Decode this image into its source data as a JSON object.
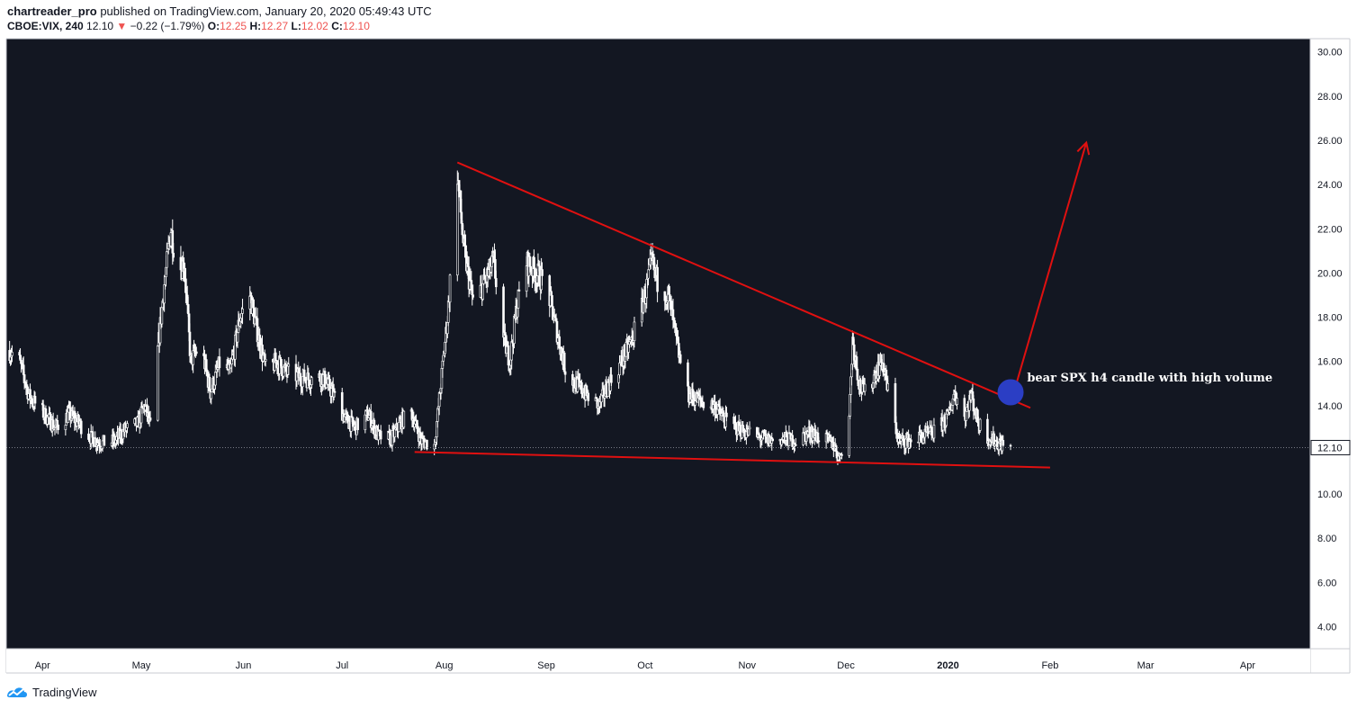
{
  "header": {
    "author": "chartreader_pro",
    "published_text": " published on TradingView.com, January 20, 2020 05:49:43 UTC",
    "symbol": "CBOE:VIX, 240",
    "last": "12.10",
    "change": "−0.22 (−1.79%)",
    "o_label": "O:",
    "o_value": "12.25",
    "h_label": "H:",
    "h_value": "12.27",
    "l_label": "L:",
    "l_value": "12.02",
    "c_label": "C:",
    "c_value": "12.10"
  },
  "footer": {
    "brand": "TradingView"
  },
  "colors": {
    "background": "#131722",
    "candle": "#ffffff",
    "trendline": "#e01010",
    "marker": "#2b3ec4",
    "axis_text": "#131722"
  },
  "chart_data": {
    "type": "candlestick",
    "symbol": "CBOE:VIX",
    "timeframe": "240",
    "title": "",
    "xlabel": "",
    "ylabel": "",
    "ylim": [
      3,
      30.6
    ],
    "y_ticks": [
      "30.00",
      "28.00",
      "26.00",
      "24.00",
      "22.00",
      "20.00",
      "18.00",
      "16.00",
      "14.00",
      "12.00",
      "10.00",
      "8.00",
      "6.00",
      "4.00"
    ],
    "last_price": 12.1,
    "last_price_label": "12.10",
    "x_ticks": [
      {
        "label": "Apr",
        "date": "2019-04-01"
      },
      {
        "label": "May",
        "date": "2019-05-01"
      },
      {
        "label": "Jun",
        "date": "2019-06-01"
      },
      {
        "label": "Jul",
        "date": "2019-07-01"
      },
      {
        "label": "Aug",
        "date": "2019-08-01"
      },
      {
        "label": "Sep",
        "date": "2019-09-01"
      },
      {
        "label": "Oct",
        "date": "2019-10-01"
      },
      {
        "label": "Nov",
        "date": "2019-11-01"
      },
      {
        "label": "Dec",
        "date": "2019-12-01"
      },
      {
        "label": "2020",
        "date": "2020-01-01",
        "bold": true
      },
      {
        "label": "Feb",
        "date": "2020-02-01"
      },
      {
        "label": "Mar",
        "date": "2020-03-01"
      },
      {
        "label": "Apr",
        "date": "2020-04-01"
      }
    ],
    "x_range": [
      "2019-03-21",
      "2020-04-20"
    ],
    "price_path": [
      [
        "2019-03-22",
        16.5
      ],
      [
        "2019-03-25",
        16.0
      ],
      [
        "2019-03-28",
        14.4
      ],
      [
        "2019-04-01",
        13.7
      ],
      [
        "2019-04-05",
        13.0
      ],
      [
        "2019-04-09",
        13.6
      ],
      [
        "2019-04-12",
        13.2
      ],
      [
        "2019-04-16",
        12.5
      ],
      [
        "2019-04-19",
        12.3
      ],
      [
        "2019-04-23",
        12.4
      ],
      [
        "2019-04-26",
        12.9
      ],
      [
        "2019-04-30",
        13.2
      ],
      [
        "2019-05-02",
        14.0
      ],
      [
        "2019-05-04",
        12.9
      ],
      [
        "2019-05-06",
        16.5
      ],
      [
        "2019-05-08",
        19.5
      ],
      [
        "2019-05-10",
        22.0
      ],
      [
        "2019-05-12",
        20.0
      ],
      [
        "2019-05-14",
        20.5
      ],
      [
        "2019-05-16",
        16.0
      ],
      [
        "2019-05-19",
        16.8
      ],
      [
        "2019-05-22",
        14.6
      ],
      [
        "2019-05-25",
        16.0
      ],
      [
        "2019-05-28",
        15.5
      ],
      [
        "2019-05-31",
        18.0
      ],
      [
        "2019-06-03",
        19.0
      ],
      [
        "2019-06-05",
        17.5
      ],
      [
        "2019-06-08",
        15.5
      ],
      [
        "2019-06-11",
        16.0
      ],
      [
        "2019-06-14",
        15.5
      ],
      [
        "2019-06-18",
        15.3
      ],
      [
        "2019-06-21",
        15.2
      ],
      [
        "2019-06-25",
        15.3
      ],
      [
        "2019-06-28",
        14.6
      ],
      [
        "2019-07-02",
        13.4
      ],
      [
        "2019-07-05",
        13.0
      ],
      [
        "2019-07-09",
        13.6
      ],
      [
        "2019-07-12",
        12.6
      ],
      [
        "2019-07-16",
        12.5
      ],
      [
        "2019-07-19",
        13.3
      ],
      [
        "2019-07-22",
        13.7
      ],
      [
        "2019-07-25",
        12.4
      ],
      [
        "2019-07-29",
        12.2
      ],
      [
        "2019-07-31",
        15.0
      ],
      [
        "2019-08-02",
        18.0
      ],
      [
        "2019-08-05",
        24.5
      ],
      [
        "2019-08-07",
        21.0
      ],
      [
        "2019-08-10",
        18.5
      ],
      [
        "2019-08-13",
        19.5
      ],
      [
        "2019-08-16",
        20.5
      ],
      [
        "2019-08-19",
        17.0
      ],
      [
        "2019-08-21",
        16.0
      ],
      [
        "2019-08-23",
        18.5
      ],
      [
        "2019-08-26",
        20.5
      ],
      [
        "2019-08-29",
        20.0
      ],
      [
        "2019-09-01",
        19.5
      ],
      [
        "2019-09-04",
        17.5
      ],
      [
        "2019-09-07",
        15.5
      ],
      [
        "2019-09-10",
        15.0
      ],
      [
        "2019-09-13",
        14.5
      ],
      [
        "2019-09-17",
        14.0
      ],
      [
        "2019-09-20",
        15.0
      ],
      [
        "2019-09-24",
        16.0
      ],
      [
        "2019-09-27",
        17.0
      ],
      [
        "2019-10-01",
        19.0
      ],
      [
        "2019-10-03",
        20.5
      ],
      [
        "2019-10-05",
        19.5
      ],
      [
        "2019-10-08",
        19.0
      ],
      [
        "2019-10-11",
        16.5
      ],
      [
        "2019-10-14",
        14.5
      ],
      [
        "2019-10-18",
        14.2
      ],
      [
        "2019-10-22",
        14.0
      ],
      [
        "2019-10-26",
        13.2
      ],
      [
        "2019-10-30",
        12.9
      ],
      [
        "2019-11-04",
        12.6
      ],
      [
        "2019-11-08",
        12.4
      ],
      [
        "2019-11-12",
        12.5
      ],
      [
        "2019-11-16",
        12.4
      ],
      [
        "2019-11-20",
        12.8
      ],
      [
        "2019-11-24",
        12.5
      ],
      [
        "2019-11-27",
        12.3
      ],
      [
        "2019-11-29",
        11.6
      ],
      [
        "2019-12-02",
        13.5
      ],
      [
        "2019-12-03",
        17.0
      ],
      [
        "2019-12-05",
        15.0
      ],
      [
        "2019-12-07",
        14.5
      ],
      [
        "2019-12-10",
        15.5
      ],
      [
        "2019-12-12",
        16.0
      ],
      [
        "2019-12-14",
        14.5
      ],
      [
        "2019-12-17",
        12.4
      ],
      [
        "2019-12-20",
        12.4
      ],
      [
        "2019-12-24",
        12.6
      ],
      [
        "2019-12-28",
        12.8
      ],
      [
        "2020-01-01",
        13.5
      ],
      [
        "2020-01-03",
        14.6
      ],
      [
        "2020-01-06",
        13.5
      ],
      [
        "2020-01-08",
        14.5
      ],
      [
        "2020-01-10",
        13.3
      ],
      [
        "2020-01-13",
        12.6
      ],
      [
        "2020-01-16",
        12.3
      ],
      [
        "2020-01-19",
        12.2
      ],
      [
        "2020-01-20",
        12.1
      ]
    ],
    "drawings": {
      "upper_trendline": [
        [
          "2019-08-05",
          25.0
        ],
        [
          "2020-01-26",
          13.9
        ]
      ],
      "lower_trendline": [
        [
          "2019-07-23",
          11.9
        ],
        [
          "2020-02-01",
          11.2
        ]
      ],
      "arrow": [
        [
          "2020-01-21",
          14.6
        ],
        [
          "2020-02-12",
          25.9
        ]
      ],
      "circle_center": [
        "2020-01-20",
        14.6
      ]
    },
    "annotation": {
      "text": "bear SPX h4 candle with high volume",
      "date": "2020-01-25",
      "price": 15.1
    }
  }
}
